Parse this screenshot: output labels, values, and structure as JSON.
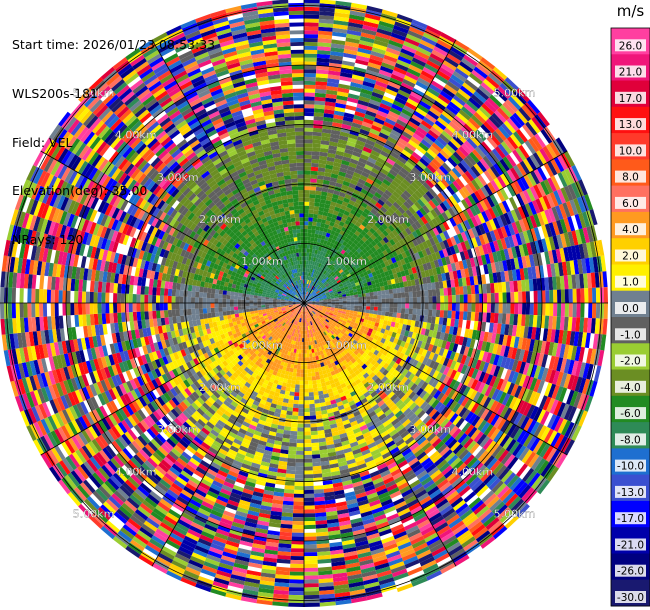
{
  "header": {
    "start_time": "Start time: 2026/01/23 08:53:33",
    "instrument": "WLS200s-181",
    "field": "Field: VEL",
    "elevation": "Elevation(deg): 35.00",
    "nrays": "NRays: 120"
  },
  "colorbar": {
    "unit": "m/s",
    "ticks": [
      "26.0",
      "21.0",
      "17.0",
      "13.0",
      "10.0",
      "8.0",
      "6.0",
      "4.0",
      "2.0",
      "1.0",
      "0.0",
      "-1.0",
      "-2.0",
      "-4.0",
      "-6.0",
      "-8.0",
      "-10.0",
      "-13.0",
      "-17.0",
      "-21.0",
      "-26.0",
      "-30.0"
    ],
    "colors": [
      "#ff3fa0",
      "#f0157a",
      "#e0003a",
      "#ff1010",
      "#ff3a2a",
      "#ff5a1a",
      "#ff7060",
      "#ff9a20",
      "#ffd000",
      "#fff000",
      "#708090",
      "#606060",
      "#9acd32",
      "#6b8e23",
      "#228b22",
      "#2e8b57",
      "#1e6fd0",
      "#3a4fd0",
      "#0000ff",
      "#0000aa",
      "#000080",
      "#191970"
    ]
  },
  "chart_data": {
    "type": "ppi",
    "field": "VEL",
    "unit": "m/s",
    "elevation_deg": 35.0,
    "nrays": 120,
    "range_rings": [
      "1.00km",
      "2.00km",
      "3.00km",
      "4.00km",
      "5.00km"
    ],
    "color_levels": [
      -30.0,
      -26.0,
      -21.0,
      -17.0,
      -13.0,
      -10.0,
      -8.0,
      -6.0,
      -4.0,
      -2.0,
      -1.0,
      0.0,
      1.0,
      2.0,
      4.0,
      6.0,
      8.0,
      10.0,
      13.0,
      17.0,
      21.0,
      26.0
    ],
    "regions": [
      {
        "description": "near field, north sector",
        "velocity_range": [
          -8,
          -2
        ]
      },
      {
        "description": "near field, south sector",
        "velocity_range": [
          4,
          8
        ]
      },
      {
        "description": "beyond ~3.5 km",
        "velocity_range": "noise"
      }
    ]
  }
}
